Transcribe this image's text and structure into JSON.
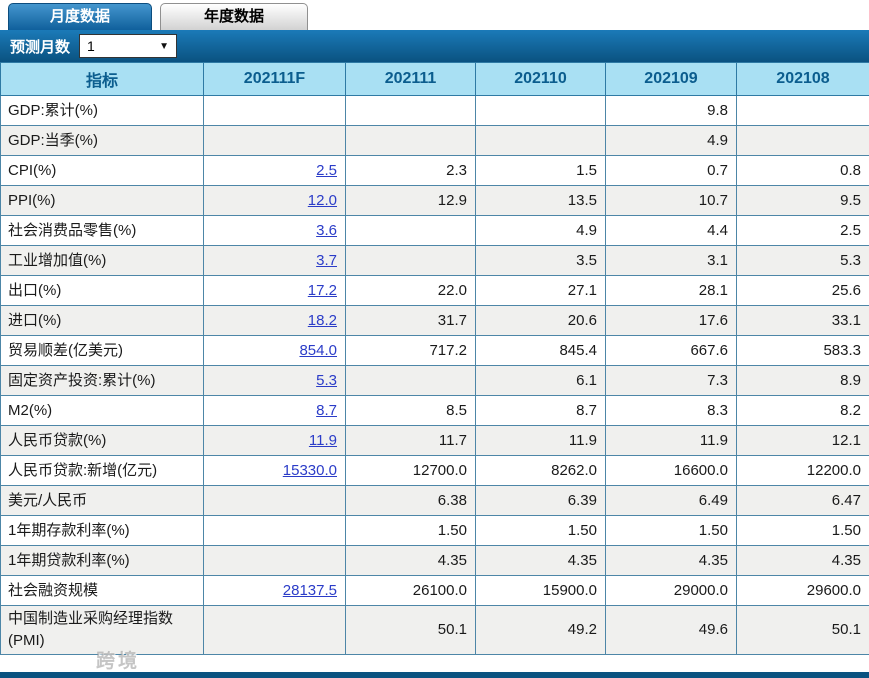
{
  "tabs": [
    {
      "label": "月度数据",
      "active": true
    },
    {
      "label": "年度数据",
      "active": false
    }
  ],
  "toolbar": {
    "forecast_label": "预测月数",
    "forecast_value": "1",
    "dropdown_arrow": "▼"
  },
  "table": {
    "columns": [
      "指标",
      "202111F",
      "202111",
      "202110",
      "202109",
      "202108"
    ],
    "rows": [
      {
        "indicator": "GDP:累计(%)",
        "forecast": "",
        "values": [
          "",
          "",
          "9.8",
          ""
        ]
      },
      {
        "indicator": "GDP:当季(%)",
        "forecast": "",
        "values": [
          "",
          "",
          "4.9",
          ""
        ]
      },
      {
        "indicator": "CPI(%)",
        "forecast": "2.5",
        "values": [
          "2.3",
          "1.5",
          "0.7",
          "0.8"
        ]
      },
      {
        "indicator": "PPI(%)",
        "forecast": "12.0",
        "values": [
          "12.9",
          "13.5",
          "10.7",
          "9.5"
        ]
      },
      {
        "indicator": "社会消费品零售(%)",
        "forecast": "3.6",
        "values": [
          "",
          "4.9",
          "4.4",
          "2.5"
        ]
      },
      {
        "indicator": "工业增加值(%)",
        "forecast": "3.7",
        "values": [
          "",
          "3.5",
          "3.1",
          "5.3"
        ]
      },
      {
        "indicator": "出口(%)",
        "forecast": "17.2",
        "values": [
          "22.0",
          "27.1",
          "28.1",
          "25.6"
        ]
      },
      {
        "indicator": "进口(%)",
        "forecast": "18.2",
        "values": [
          "31.7",
          "20.6",
          "17.6",
          "33.1"
        ]
      },
      {
        "indicator": "贸易顺差(亿美元)",
        "forecast": "854.0",
        "values": [
          "717.2",
          "845.4",
          "667.6",
          "583.3"
        ]
      },
      {
        "indicator": "固定资产投资:累计(%)",
        "forecast": "5.3",
        "values": [
          "",
          "6.1",
          "7.3",
          "8.9"
        ]
      },
      {
        "indicator": "M2(%)",
        "forecast": "8.7",
        "values": [
          "8.5",
          "8.7",
          "8.3",
          "8.2"
        ]
      },
      {
        "indicator": "人民币贷款(%)",
        "forecast": "11.9",
        "values": [
          "11.7",
          "11.9",
          "11.9",
          "12.1"
        ]
      },
      {
        "indicator": "人民币贷款:新增(亿元)",
        "forecast": "15330.0",
        "values": [
          "12700.0",
          "8262.0",
          "16600.0",
          "12200.0"
        ]
      },
      {
        "indicator": "美元/人民币",
        "forecast": "",
        "values": [
          "6.38",
          "6.39",
          "6.49",
          "6.47"
        ]
      },
      {
        "indicator": "1年期存款利率(%)",
        "forecast": "",
        "values": [
          "1.50",
          "1.50",
          "1.50",
          "1.50"
        ]
      },
      {
        "indicator": "1年期贷款利率(%)",
        "forecast": "",
        "values": [
          "4.35",
          "4.35",
          "4.35",
          "4.35"
        ]
      },
      {
        "indicator": "社会融资规模",
        "forecast": "28137.5",
        "values": [
          "26100.0",
          "15900.0",
          "29000.0",
          "29600.0"
        ]
      },
      {
        "indicator": "中国制造业采购经理指数(PMI)",
        "forecast": "",
        "values": [
          "50.1",
          "49.2",
          "49.6",
          "50.1"
        ]
      }
    ]
  },
  "watermark": "跨境",
  "colors": {
    "accent_blue": "#0a5280",
    "tab_active_top": "#4496ce",
    "header_bg": "#a9e0f3",
    "header_text": "#0b5d8e",
    "grid_border": "#4d86a7",
    "row_alt": "#f0f0ee",
    "link": "#2b3cc8"
  }
}
